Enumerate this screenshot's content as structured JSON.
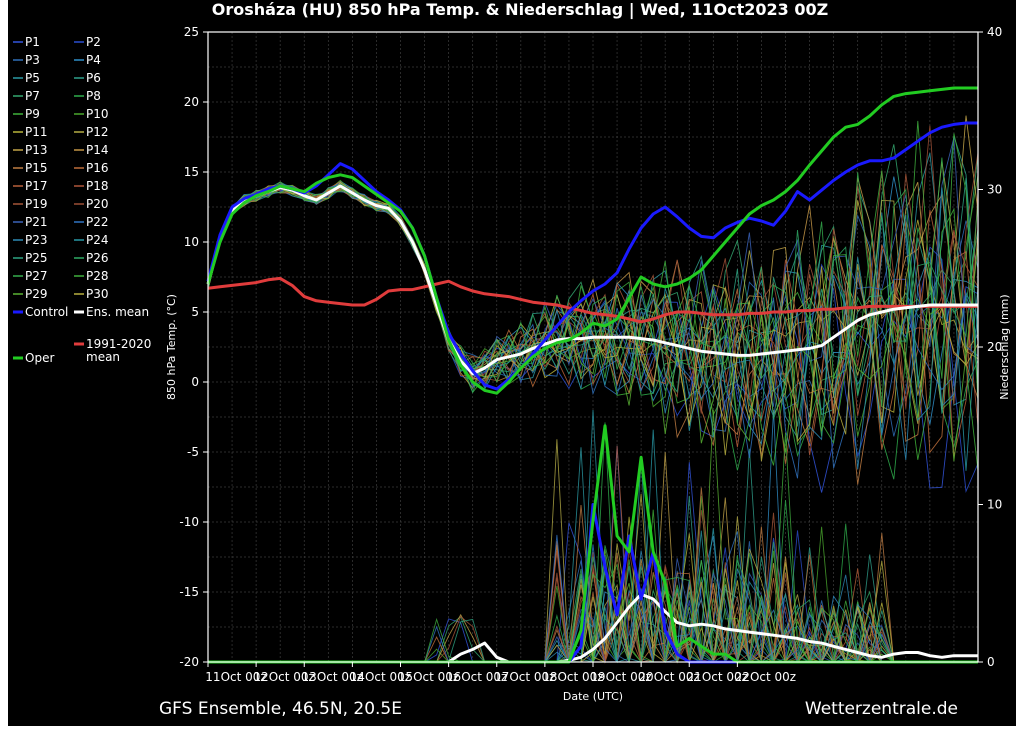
{
  "chart_data": {
    "type": "line",
    "title": "Orosháza  (HU)  850 hPa Temp. & Niederschlag | Wed, 11Oct2023 00Z",
    "xlabel": "Date (UTC)",
    "ylabel": "850 hPa Temp. (°C)",
    "y2label": "Niederschlag (mm)",
    "ylim": [
      -20,
      25
    ],
    "y2lim": [
      0,
      40
    ],
    "yticks": [
      "25",
      "20",
      "15",
      "10",
      "5",
      "0",
      "-5",
      "-10",
      "-15",
      "-20"
    ],
    "y2ticks": [
      "40",
      "30",
      "20",
      "10",
      "0"
    ],
    "xticks": [
      "11Oct 00z",
      "12Oct 00z",
      "13Oct 00z",
      "14Oct 00z",
      "15Oct 00z",
      "16Oct 00z",
      "17Oct 00z",
      "18Oct 00z",
      "19Oct 00z",
      "20Oct 00z",
      "21Oct 00z",
      "22Oct 00z"
    ],
    "grid": true,
    "legend_position": "left",
    "footer_left": "GFS Ensemble, 46.5N, 20.5E",
    "footer_right": "Wetterzentrale.de",
    "x_hours": [
      0,
      6,
      12,
      18,
      24,
      30,
      36,
      42,
      48,
      54,
      60,
      66,
      72,
      78,
      84,
      90,
      96,
      102,
      108,
      114,
      120,
      126,
      132,
      138,
      144,
      150,
      156,
      162,
      168,
      174,
      180,
      186,
      192,
      198,
      204,
      210,
      216,
      222,
      228,
      234,
      240,
      246,
      252,
      258,
      264,
      270,
      276,
      282,
      288,
      294,
      300,
      306,
      312,
      318,
      324,
      330,
      336,
      342,
      348,
      354,
      360,
      366,
      372,
      378,
      384
    ],
    "legend": [
      {
        "name": "P1",
        "color": "#3355dd"
      },
      {
        "name": "P2",
        "color": "#2b4fd1"
      },
      {
        "name": "P3",
        "color": "#2f6fb8"
      },
      {
        "name": "P4",
        "color": "#2f8fc8"
      },
      {
        "name": "P5",
        "color": "#2a9aa4"
      },
      {
        "name": "P6",
        "color": "#2fa08c"
      },
      {
        "name": "P7",
        "color": "#34a870"
      },
      {
        "name": "P8",
        "color": "#2fae4c"
      },
      {
        "name": "P9",
        "color": "#3fb33a"
      },
      {
        "name": "P10",
        "color": "#4aa82e"
      },
      {
        "name": "P11",
        "color": "#b9b43a"
      },
      {
        "name": "P12",
        "color": "#b5ad46"
      },
      {
        "name": "P13",
        "color": "#c3a449"
      },
      {
        "name": "P14",
        "color": "#c49646"
      },
      {
        "name": "P15",
        "color": "#c07d43"
      },
      {
        "name": "P16",
        "color": "#bf6e3b"
      },
      {
        "name": "P17",
        "color": "#b8603a"
      },
      {
        "name": "P18",
        "color": "#b0573a"
      },
      {
        "name": "P19",
        "color": "#a65638"
      },
      {
        "name": "P20",
        "color": "#9c4f36"
      },
      {
        "name": "P21",
        "color": "#3a62b8"
      },
      {
        "name": "P22",
        "color": "#3174c2"
      },
      {
        "name": "P23",
        "color": "#2d8ab6"
      },
      {
        "name": "P24",
        "color": "#2898a6"
      },
      {
        "name": "P25",
        "color": "#2ea482"
      },
      {
        "name": "P26",
        "color": "#2faa66"
      },
      {
        "name": "P27",
        "color": "#35ad4e"
      },
      {
        "name": "P28",
        "color": "#40b03e"
      },
      {
        "name": "P29",
        "color": "#5ab434"
      },
      {
        "name": "P30",
        "color": "#b8b040"
      },
      {
        "name": "Control",
        "color": "#1a1aff"
      },
      {
        "name": "Ens. mean",
        "color": "#ffffff"
      },
      {
        "name": "1991-2020 mean",
        "color": "#e03c3c"
      },
      {
        "name": "Oper",
        "color": "#22cc22"
      }
    ],
    "series": [
      {
        "name": "Control",
        "axis": "temp",
        "color": "#1a1aff",
        "values": [
          7.2,
          10.5,
          12.5,
          13.1,
          13.4,
          13.8,
          14.0,
          13.8,
          13.5,
          14.0,
          14.8,
          15.6,
          15.2,
          14.4,
          13.6,
          13.0,
          12.3,
          11.0,
          9.0,
          6.0,
          3.5,
          2.0,
          0.8,
          -0.2,
          -0.5,
          0.2,
          1.0,
          2.0,
          3.0,
          4.0,
          5.0,
          5.8,
          6.5,
          7.0,
          7.8,
          9.5,
          11.0,
          12.0,
          12.5,
          11.8,
          11.0,
          10.4,
          10.3,
          11.0,
          11.4,
          11.7,
          11.5,
          11.2,
          12.2,
          13.6,
          13.0,
          13.7,
          14.4,
          15.0,
          15.5,
          15.8,
          15.8,
          16.0,
          16.6,
          17.2,
          17.8,
          18.2,
          18.4,
          18.5,
          18.5
        ]
      },
      {
        "name": "Oper",
        "axis": "temp",
        "color": "#22cc22",
        "values": [
          7.0,
          10.0,
          12.0,
          12.8,
          13.3,
          13.6,
          14.0,
          13.8,
          13.6,
          14.2,
          14.6,
          14.8,
          14.6,
          14.0,
          13.4,
          12.8,
          12.2,
          11.0,
          9.0,
          6.0,
          3.0,
          1.2,
          0.0,
          -0.6,
          -0.8,
          0.0,
          1.0,
          1.8,
          2.4,
          2.8,
          3.0,
          3.5,
          4.2,
          4.0,
          4.5,
          6.0,
          7.5,
          7.0,
          6.8,
          7.0,
          7.4,
          8.0,
          9.0,
          10.0,
          11.0,
          12.0,
          12.6,
          13.0,
          13.6,
          14.4,
          15.5,
          16.5,
          17.5,
          18.2,
          18.4,
          19.0,
          19.8,
          20.4,
          20.6,
          20.7,
          20.8,
          20.9,
          21.0,
          21.0,
          21.0
        ]
      },
      {
        "name": "Ens. mean",
        "axis": "temp",
        "color": "#ffffff",
        "values": [
          7.0,
          10.2,
          12.2,
          13.0,
          13.3,
          13.6,
          13.9,
          13.7,
          13.3,
          13.0,
          13.5,
          14.0,
          13.5,
          13.0,
          12.6,
          12.4,
          11.5,
          10.0,
          8.0,
          5.5,
          3.0,
          1.5,
          0.6,
          1.0,
          1.6,
          1.8,
          2.0,
          2.4,
          2.7,
          3.0,
          3.1,
          3.1,
          3.2,
          3.2,
          3.2,
          3.2,
          3.1,
          3.0,
          2.8,
          2.6,
          2.4,
          2.2,
          2.1,
          2.0,
          1.9,
          1.9,
          2.0,
          2.1,
          2.2,
          2.3,
          2.4,
          2.6,
          3.2,
          3.8,
          4.4,
          4.8,
          5.0,
          5.2,
          5.3,
          5.4,
          5.5,
          5.5,
          5.5,
          5.5,
          5.5
        ]
      },
      {
        "name": "1991-2020 mean",
        "axis": "temp",
        "color": "#e03c3c",
        "values": [
          6.7,
          6.8,
          6.9,
          7.0,
          7.1,
          7.3,
          7.4,
          6.9,
          6.1,
          5.8,
          5.7,
          5.6,
          5.5,
          5.5,
          5.9,
          6.5,
          6.6,
          6.6,
          6.8,
          7.0,
          7.2,
          6.8,
          6.5,
          6.3,
          6.2,
          6.1,
          5.9,
          5.7,
          5.6,
          5.5,
          5.3,
          5.1,
          4.9,
          4.8,
          4.7,
          4.5,
          4.3,
          4.5,
          4.8,
          5.0,
          5.0,
          4.9,
          4.8,
          4.8,
          4.8,
          4.9,
          4.9,
          5.0,
          5.0,
          5.1,
          5.1,
          5.2,
          5.2,
          5.3,
          5.3,
          5.4,
          5.4,
          5.4,
          5.4,
          5.4,
          5.4,
          5.4,
          5.4,
          5.4,
          5.4
        ]
      },
      {
        "name": "Oper precip",
        "axis": "precip",
        "color": "#22cc22",
        "values": [
          0,
          0,
          0,
          0,
          0,
          0,
          0,
          0,
          0,
          0,
          0,
          0,
          0,
          0,
          0,
          0,
          0,
          0,
          0,
          0,
          0,
          0,
          0,
          0,
          0,
          0,
          0,
          0,
          0,
          0,
          0,
          2,
          9,
          15,
          8,
          7,
          13,
          7,
          5,
          1,
          1.5,
          1,
          0.5,
          0.5,
          0,
          0,
          0,
          0,
          0,
          0,
          0,
          0,
          0,
          0,
          0,
          0,
          0,
          0,
          0,
          0,
          0,
          0,
          0,
          0,
          0
        ]
      },
      {
        "name": "Control precip",
        "axis": "precip",
        "color": "#1a1aff",
        "values": [
          0,
          0,
          0,
          0,
          0,
          0,
          0,
          0,
          0,
          0,
          0,
          0,
          0,
          0,
          0,
          0,
          0,
          0,
          0,
          0,
          0,
          0,
          0,
          0,
          0,
          0,
          0,
          0,
          0,
          0,
          0,
          1,
          10,
          6,
          3,
          8,
          4,
          7,
          2,
          0.5,
          0,
          0,
          0,
          0,
          0,
          0,
          0,
          0,
          0,
          0,
          0,
          0,
          0,
          0,
          0,
          0,
          0,
          0,
          0,
          0,
          0,
          0,
          0,
          0,
          0
        ]
      },
      {
        "name": "Ens. mean precip",
        "axis": "precip",
        "color": "#ffffff",
        "values": [
          0,
          0,
          0,
          0,
          0,
          0,
          0,
          0,
          0,
          0,
          0,
          0,
          0,
          0,
          0,
          0,
          0,
          0,
          0,
          0,
          0,
          0.5,
          0.8,
          1.2,
          0.3,
          0,
          0,
          0,
          0,
          0,
          0.1,
          0.3,
          0.8,
          1.5,
          2.5,
          3.5,
          4.3,
          4.0,
          3.2,
          2.5,
          2.3,
          2.4,
          2.3,
          2.1,
          2.0,
          1.9,
          1.8,
          1.7,
          1.6,
          1.5,
          1.3,
          1.2,
          1.0,
          0.8,
          0.6,
          0.4,
          0.3,
          0.5,
          0.6,
          0.6,
          0.4,
          0.3,
          0.4,
          0.4,
          0.4
        ]
      }
    ]
  }
}
